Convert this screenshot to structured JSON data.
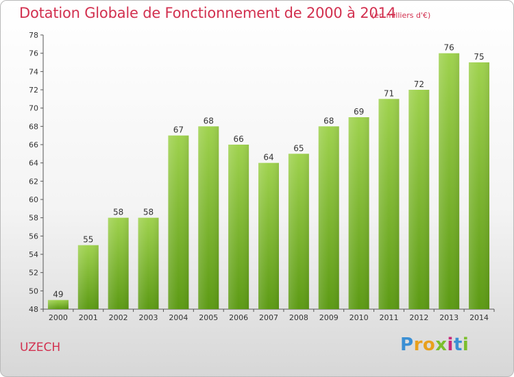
{
  "title": "Dotation Globale de Fonctionnement de 2000 à 2014",
  "unit": "(en milliers d'€)",
  "commune": "UZECH",
  "logo": {
    "text": "Proxiti",
    "colors": [
      "#3a8fd4",
      "#e8a01d",
      "#e8a01d",
      "#7bbf2c",
      "#c82a7a",
      "#3a8fd4",
      "#7bbf2c"
    ]
  },
  "colors": {
    "bar_top": "#9fd24e",
    "bar_bottom": "#5c9a14",
    "text": "#d2304f",
    "axis": "#555555"
  },
  "chart_data": {
    "type": "bar",
    "title": "Dotation Globale de Fonctionnement de 2000 à 2014",
    "subtitle": "(en milliers d'€)",
    "xlabel": "",
    "ylabel": "",
    "categories": [
      "2000",
      "2001",
      "2002",
      "2003",
      "2004",
      "2005",
      "2006",
      "2007",
      "2008",
      "2009",
      "2010",
      "2011",
      "2012",
      "2013",
      "2014"
    ],
    "values": [
      49,
      55,
      58,
      58,
      67,
      68,
      66,
      64,
      65,
      68,
      69,
      71,
      72,
      76,
      75
    ],
    "ylim": [
      48,
      78
    ],
    "yticks": [
      48,
      50,
      52,
      54,
      56,
      58,
      60,
      62,
      64,
      66,
      68,
      70,
      72,
      74,
      76,
      78
    ],
    "grid": false,
    "legend": "none"
  }
}
